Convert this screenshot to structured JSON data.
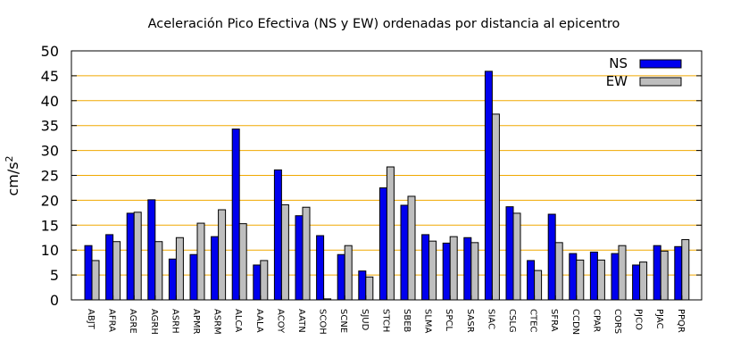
{
  "chart_data": {
    "type": "bar",
    "title": "Aceleración Pico Efectiva (NS y EW) ordenadas por distancia al epicentro",
    "xlabel": "",
    "ylabel": "cm/s",
    "ylabel_sup": "2",
    "ylim": [
      0,
      50
    ],
    "yticks": [
      0,
      5,
      10,
      15,
      20,
      25,
      30,
      35,
      40,
      45,
      50
    ],
    "grid": "horizontal",
    "grid_color": "#f0a800",
    "legend_position": "top-right",
    "categories": [
      "ABJT",
      "AFRA",
      "AGRE",
      "AGRH",
      "ASRH",
      "APMR",
      "ASRM",
      "ALCA",
      "AALA",
      "ACOY",
      "AATN",
      "SCOH",
      "SCNE",
      "SJUD",
      "STCH",
      "SBEB",
      "SLMA",
      "SPCL",
      "SASR",
      "SIAC",
      "CSLG",
      "CTEC",
      "SFRA",
      "CCDN",
      "CPAR",
      "CORS",
      "PJCO",
      "PJAC",
      "PPQR"
    ],
    "series": [
      {
        "name": "NS",
        "color": "#0000ee",
        "values": [
          10.9,
          13.1,
          17.4,
          20.1,
          8.2,
          9.1,
          12.7,
          34.3,
          7.0,
          26.1,
          16.9,
          12.9,
          9.1,
          5.8,
          22.5,
          19.0,
          13.1,
          11.4,
          12.5,
          45.9,
          18.7,
          7.9,
          17.2,
          9.3,
          9.6,
          9.3,
          7.0,
          10.9,
          10.7
        ]
      },
      {
        "name": "EW",
        "color": "#bebebe",
        "values": [
          7.9,
          11.7,
          17.6,
          11.7,
          12.5,
          15.4,
          18.1,
          15.3,
          7.9,
          19.1,
          18.6,
          0.2,
          10.9,
          4.6,
          26.7,
          20.8,
          11.8,
          12.7,
          11.5,
          37.3,
          17.4,
          5.9,
          11.5,
          8.0,
          8.0,
          10.9,
          7.6,
          9.8,
          12.1
        ]
      }
    ]
  }
}
